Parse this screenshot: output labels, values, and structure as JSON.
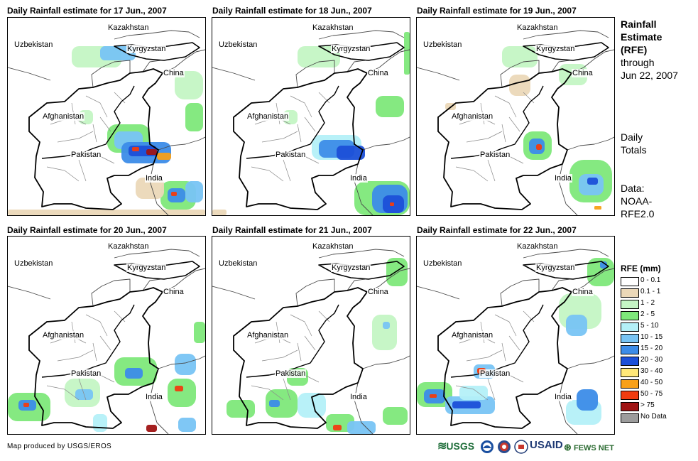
{
  "panels": [
    {
      "title": "Daily Rainfall estimate for 17 Jun., 2007",
      "rain_profile": "heavy-pakistan-india"
    },
    {
      "title": "Daily Rainfall estimate for 18 Jun., 2007",
      "rain_profile": "moderate-pakistan-india"
    },
    {
      "title": "Daily Rainfall estimate for 19 Jun., 2007",
      "rain_profile": "localized-pakistan"
    },
    {
      "title": "Daily Rainfall estimate for 20 Jun., 2007",
      "rain_profile": "scattered-pakistan-india"
    },
    {
      "title": "Daily Rainfall estimate for 21 Jun., 2007",
      "rain_profile": "scattered-south"
    },
    {
      "title": "Daily Rainfall estimate for 22 Jun., 2007",
      "rain_profile": "coastal-pakistan"
    }
  ],
  "map_labels": {
    "kazakhstan": "Kazakhstan",
    "kyrgyzstan": "Kyrgyzstan",
    "uzbekistan": "Uzbekistan",
    "china": "China",
    "afghanistan": "Afghanistan",
    "pakistan": "Pakistan",
    "india": "India"
  },
  "side": {
    "title_line1": "Rainfall",
    "title_line2": "Estimate",
    "title_line3": "(RFE)",
    "through": "through",
    "date": "Jun 22, 2007",
    "daily1": "Daily",
    "daily2": "Totals",
    "data1": "Data:",
    "data2": "NOAA-",
    "data3": "RFE2.0"
  },
  "legend": {
    "title": "RFE (mm)",
    "items": [
      {
        "label": "0 - 0.1",
        "color": "#ffffff"
      },
      {
        "label": "0.1 - 1",
        "color": "#ebd8b8"
      },
      {
        "label": "1 - 2",
        "color": "#c4f5c4"
      },
      {
        "label": "2 - 5",
        "color": "#7ee87a"
      },
      {
        "label": "5 - 10",
        "color": "#b4f0f8"
      },
      {
        "label": "10 - 15",
        "color": "#78c4f4"
      },
      {
        "label": "15 - 20",
        "color": "#3c8ce8"
      },
      {
        "label": "20 - 30",
        "color": "#1c50d8"
      },
      {
        "label": "30 - 40",
        "color": "#ffe878"
      },
      {
        "label": "40 - 50",
        "color": "#f8a018"
      },
      {
        "label": "50 - 75",
        "color": "#f03c10"
      },
      {
        "label": "> 75",
        "color": "#a01414"
      },
      {
        "label": "No Data",
        "color": "#9c9c9c"
      }
    ]
  },
  "credit": "Map produced by USGS/EROS",
  "logos": {
    "usgs": "USGS",
    "noaa": "NOAA",
    "usaid": "USAID",
    "fewsnet": "FEWS NET"
  }
}
